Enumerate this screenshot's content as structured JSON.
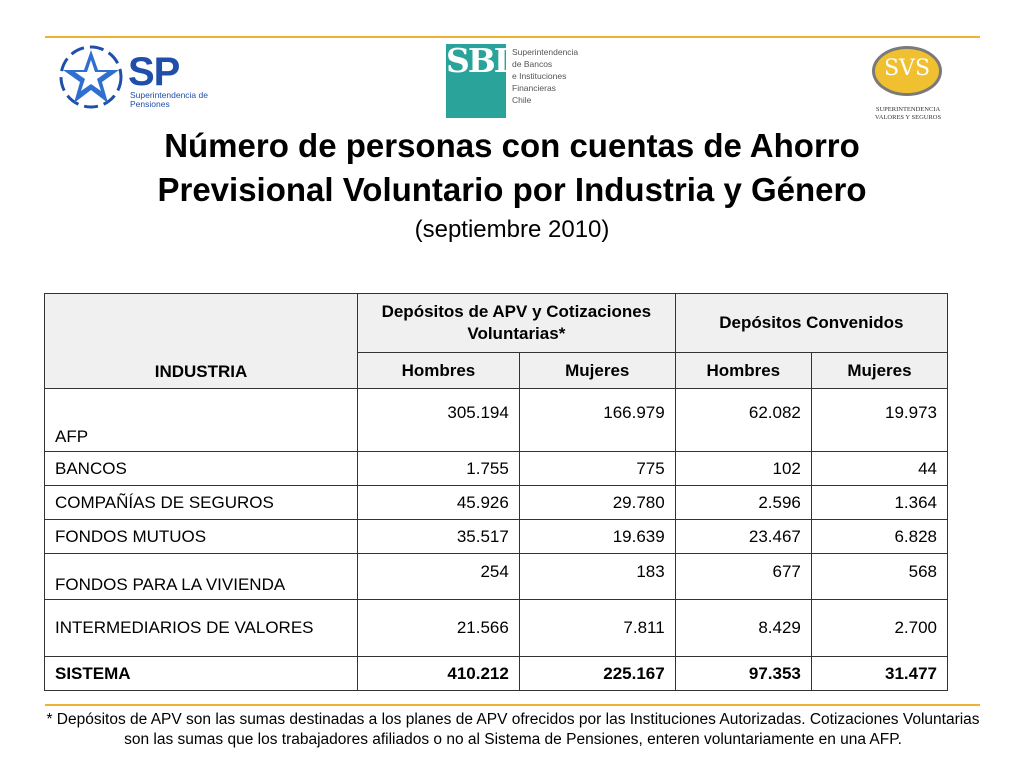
{
  "logos": {
    "sp": {
      "mark": "SP",
      "name": "Superintendencia de Pensiones"
    },
    "sbif": {
      "mark": "SBIF",
      "lines": [
        "Superintendencia",
        "de Bancos",
        "e Instituciones",
        "Financieras",
        "Chile"
      ]
    },
    "svs": {
      "mark": "SVS",
      "lines": [
        "SUPERINTENDENCIA",
        "VALORES Y SEGUROS"
      ]
    }
  },
  "title_line1": "Número de personas con cuentas de Ahorro",
  "title_line2": "Previsional Voluntario por Industria y Género",
  "subtitle": "(septiembre 2010)",
  "table": {
    "header_industria": "INDUSTRIA",
    "group1": "Depósitos de APV y Cotizaciones Voluntarias*",
    "group2": "Depósitos Convenidos",
    "sub": [
      "Hombres",
      "Mujeres",
      "Hombres",
      "Mujeres"
    ],
    "rows": [
      {
        "name": "AFP",
        "values": [
          "305.194",
          "166.979",
          "62.082",
          "19.973"
        ]
      },
      {
        "name": "BANCOS",
        "values": [
          "1.755",
          "775",
          "102",
          "44"
        ]
      },
      {
        "name": "COMPAÑÍAS DE SEGUROS",
        "values": [
          "45.926",
          "29.780",
          "2.596",
          "1.364"
        ]
      },
      {
        "name": "FONDOS MUTUOS",
        "values": [
          "35.517",
          "19.639",
          "23.467",
          "6.828"
        ]
      },
      {
        "name": "FONDOS PARA LA VIVIENDA",
        "values": [
          "254",
          "183",
          "677",
          "568"
        ]
      },
      {
        "name": "INTERMEDIARIOS DE VALORES",
        "values": [
          "21.566",
          "7.811",
          "8.429",
          "2.700"
        ]
      }
    ],
    "total": {
      "name": "SISTEMA",
      "values": [
        "410.212",
        "225.167",
        "97.353",
        "31.477"
      ]
    }
  },
  "footnote": "* Depósitos de APV son las sumas destinadas a los planes de APV ofrecidos por las Instituciones Autorizadas. Cotizaciones Voluntarias son las sumas que los trabajadores afiliados o no al Sistema de Pensiones, enteren voluntariamente en una AFP.",
  "colors": {
    "accent_rule": "#f0b030",
    "sp_blue": "#1f4fa8",
    "sbif_teal": "#2aa39a",
    "svs_gold": "#f0c030",
    "header_bg": "#f0f0f0"
  }
}
